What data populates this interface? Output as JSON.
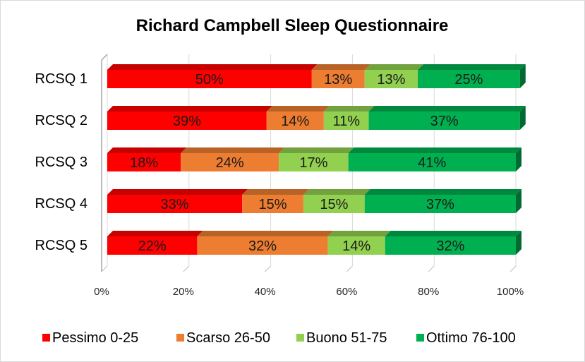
{
  "chart_data": {
    "type": "bar",
    "orientation": "horizontal",
    "stacked": "percent",
    "style": "3d",
    "title": "Richard Campbell Sleep Questionnaire",
    "categories": [
      "RCSQ 1",
      "RCSQ 2",
      "RCSQ 3",
      "RCSQ 4",
      "RCSQ 5"
    ],
    "series": [
      {
        "name": "Pessimo 0-25",
        "color": "#ff0000",
        "values": [
          50,
          39,
          18,
          33,
          22
        ]
      },
      {
        "name": "Scarso 26-50",
        "color": "#ed7d31",
        "values": [
          13,
          14,
          24,
          15,
          32
        ]
      },
      {
        "name": "Buono 51-75",
        "color": "#92d050",
        "values": [
          13,
          11,
          17,
          15,
          14
        ]
      },
      {
        "name": "Ottimo 76-100",
        "color": "#00b050",
        "values": [
          25,
          37,
          41,
          37,
          32
        ]
      }
    ],
    "data_labels": [
      [
        "50%",
        "13%",
        "13%",
        "25%"
      ],
      [
        "39%",
        "14%",
        "11%",
        "37%"
      ],
      [
        "18%",
        "24%",
        "17%",
        "41%"
      ],
      [
        "33%",
        "15%",
        "15%",
        "37%"
      ],
      [
        "22%",
        "32%",
        "14%",
        "32%"
      ]
    ],
    "x_ticks": [
      "0%",
      "20%",
      "40%",
      "60%",
      "80%",
      "100%"
    ],
    "xlim": [
      0,
      100
    ],
    "legend_position": "bottom",
    "grid": true
  }
}
